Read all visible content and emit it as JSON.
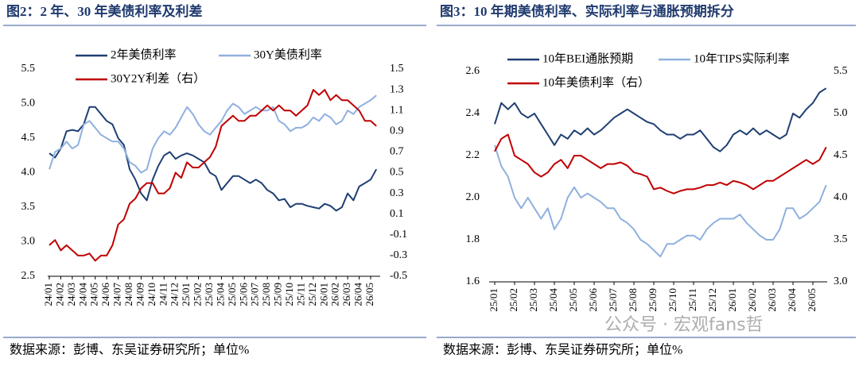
{
  "chart_data": [
    {
      "type": "line",
      "title": "图2：2 年、30 年美债利率及利差",
      "note": "数据来源：彭博、东吴证券研究所；单位%",
      "categories": [
        "24/01",
        null,
        "24/02",
        null,
        "24/03",
        null,
        "24/04",
        null,
        "24/05",
        null,
        "24/06",
        null,
        "24/07",
        null,
        "24/08",
        null,
        "24/09",
        null,
        "24/10",
        null,
        "24/11",
        null,
        "24/12",
        null,
        "25/01",
        null,
        "25/02",
        null,
        "25/03",
        null,
        "25/04",
        null,
        "25/05",
        null,
        "25/06",
        null,
        "25/07",
        null,
        "25/08",
        null,
        "25/09",
        null,
        "25/10",
        null,
        "25/11",
        null,
        "25/12",
        null,
        "26/01",
        null,
        "26/02",
        null,
        "26/03",
        null,
        "26/04",
        null,
        "26/05",
        null
      ],
      "ylim": [
        2.5,
        5.5
      ],
      "yticks": [
        2.5,
        {
          "value": 3,
          "label": "3.0"
        },
        3.5,
        {
          "value": 4,
          "label": "4.0"
        },
        4.5,
        {
          "value": 5,
          "label": "5.0"
        },
        5.5
      ],
      "y2lim": [
        -0.5,
        1.5
      ],
      "y2ticks": [
        -0.5,
        -0.3,
        -0.1,
        0.1,
        0.3,
        0.5,
        0.7,
        0.9,
        1.1,
        1.3,
        1.5
      ],
      "series": [
        {
          "name": "2年美债利率",
          "color": "#1f3f73",
          "values": [
            4.28,
            4.22,
            4.35,
            4.6,
            4.62,
            4.6,
            4.7,
            4.95,
            4.95,
            4.85,
            4.75,
            4.7,
            4.5,
            4.4,
            4.05,
            3.9,
            3.7,
            3.6,
            3.9,
            4.1,
            4.25,
            4.3,
            4.2,
            4.25,
            4.28,
            4.25,
            4.2,
            4.15,
            4.0,
            3.95,
            3.75,
            3.85,
            3.95,
            3.95,
            3.9,
            3.85,
            3.9,
            3.85,
            3.75,
            3.7,
            3.6,
            3.62,
            3.5,
            3.55,
            3.55,
            3.52,
            3.5,
            3.48,
            3.55,
            3.52,
            3.45,
            3.5,
            3.7,
            3.6,
            3.8,
            3.85,
            3.9,
            4.05
          ]
        },
        {
          "name": "30Y美债利率",
          "color": "#8fb0de",
          "values": [
            4.05,
            4.3,
            4.35,
            4.45,
            4.35,
            4.4,
            4.7,
            4.75,
            4.65,
            4.55,
            4.5,
            4.45,
            4.45,
            4.35,
            4.15,
            4.1,
            4.0,
            4.05,
            4.35,
            4.5,
            4.6,
            4.55,
            4.65,
            4.8,
            4.95,
            4.85,
            4.7,
            4.6,
            4.55,
            4.65,
            4.75,
            4.9,
            5.0,
            4.95,
            4.85,
            4.9,
            4.95,
            4.9,
            4.9,
            4.95,
            4.75,
            4.7,
            4.6,
            4.65,
            4.65,
            4.7,
            4.8,
            4.75,
            4.85,
            4.8,
            4.7,
            4.75,
            4.9,
            4.85,
            4.95,
            5.0,
            5.05,
            5.12
          ]
        },
        {
          "name": "30Y2Y利差（右）",
          "color": "#c00000",
          "axis": "y2",
          "values": [
            -0.2,
            -0.15,
            -0.25,
            -0.2,
            -0.25,
            -0.3,
            -0.3,
            -0.28,
            -0.35,
            -0.3,
            -0.3,
            -0.2,
            0.0,
            0.05,
            0.2,
            0.25,
            0.35,
            0.4,
            0.4,
            0.3,
            0.3,
            0.35,
            0.5,
            0.45,
            0.6,
            0.55,
            0.55,
            0.6,
            0.65,
            0.75,
            0.95,
            1.0,
            1.05,
            1.0,
            1.0,
            1.05,
            1.05,
            1.1,
            1.15,
            1.1,
            1.15,
            1.1,
            1.1,
            1.05,
            1.1,
            1.15,
            1.3,
            1.25,
            1.3,
            1.2,
            1.25,
            1.2,
            1.2,
            1.15,
            1.1,
            1.0,
            1.0,
            0.95
          ]
        }
      ]
    },
    {
      "type": "line",
      "title": "图3：10 年期美债利率、实际利率与通胀预期拆分",
      "note": "数据来源：彭博、东吴证券研究所；单位%",
      "categories": [
        "25/01",
        null,
        null,
        "25/02",
        null,
        null,
        "25/03",
        null,
        null,
        "25/04",
        null,
        null,
        "25/05",
        null,
        null,
        "25/06",
        null,
        null,
        "25/07",
        null,
        null,
        "25/08",
        null,
        null,
        "25/09",
        null,
        null,
        "25/10",
        null,
        null,
        "25/11",
        null,
        null,
        "25/12",
        null,
        null,
        "26/01",
        null,
        null,
        "26/02",
        null,
        null,
        "26/03",
        null,
        null,
        "26/04",
        null,
        null,
        "26/05",
        null,
        null
      ],
      "ylim": [
        1.6,
        2.6
      ],
      "yticks": [
        1.6,
        1.8,
        {
          "value": 2,
          "label": "2.0"
        },
        2.2,
        2.4,
        2.6
      ],
      "y2lim": [
        3,
        5.5
      ],
      "y2ticks": [
        {
          "value": 3,
          "label": "3.0"
        },
        3.5,
        {
          "value": 4,
          "label": "4.0"
        },
        4.5,
        {
          "value": 5,
          "label": "5.0"
        },
        5.5
      ],
      "series": [
        {
          "name": "10年BEI通胀预期",
          "color": "#1f3f73",
          "values": [
            2.35,
            2.45,
            2.42,
            2.45,
            2.4,
            2.38,
            2.4,
            2.35,
            2.3,
            2.25,
            2.3,
            2.28,
            2.32,
            2.3,
            2.33,
            2.3,
            2.32,
            2.35,
            2.38,
            2.4,
            2.42,
            2.4,
            2.38,
            2.36,
            2.35,
            2.32,
            2.3,
            2.3,
            2.28,
            2.3,
            2.3,
            2.32,
            2.28,
            2.24,
            2.22,
            2.25,
            2.3,
            2.32,
            2.3,
            2.33,
            2.3,
            2.32,
            2.3,
            2.28,
            2.3,
            2.4,
            2.38,
            2.42,
            2.45,
            2.5,
            2.52
          ]
        },
        {
          "name": "10年TIPS实际利率",
          "color": "#8fb0de",
          "values": [
            2.25,
            2.15,
            2.1,
            2.0,
            1.95,
            2.0,
            1.95,
            1.9,
            1.95,
            1.85,
            1.9,
            2.0,
            2.05,
            2.0,
            2.02,
            2.0,
            1.98,
            1.95,
            1.95,
            1.9,
            1.88,
            1.85,
            1.8,
            1.78,
            1.75,
            1.72,
            1.78,
            1.78,
            1.8,
            1.82,
            1.82,
            1.8,
            1.85,
            1.88,
            1.9,
            1.9,
            1.9,
            1.92,
            1.88,
            1.85,
            1.82,
            1.8,
            1.8,
            1.85,
            1.95,
            1.95,
            1.9,
            1.92,
            1.95,
            1.98,
            2.06
          ]
        },
        {
          "name": "10年美债利率（右）",
          "color": "#c00000",
          "axis": "y2",
          "values": [
            4.55,
            4.7,
            4.75,
            4.5,
            4.45,
            4.4,
            4.3,
            4.25,
            4.3,
            4.4,
            4.45,
            4.35,
            4.5,
            4.5,
            4.45,
            4.4,
            4.35,
            4.4,
            4.4,
            4.42,
            4.38,
            4.3,
            4.28,
            4.25,
            4.1,
            4.12,
            4.08,
            4.05,
            4.08,
            4.1,
            4.1,
            4.12,
            4.15,
            4.15,
            4.18,
            4.15,
            4.2,
            4.18,
            4.15,
            4.1,
            4.15,
            4.2,
            4.2,
            4.25,
            4.3,
            4.35,
            4.4,
            4.45,
            4.4,
            4.45,
            4.6
          ]
        }
      ]
    }
  ],
  "watermark": "公众号 · 宏观fans哲"
}
